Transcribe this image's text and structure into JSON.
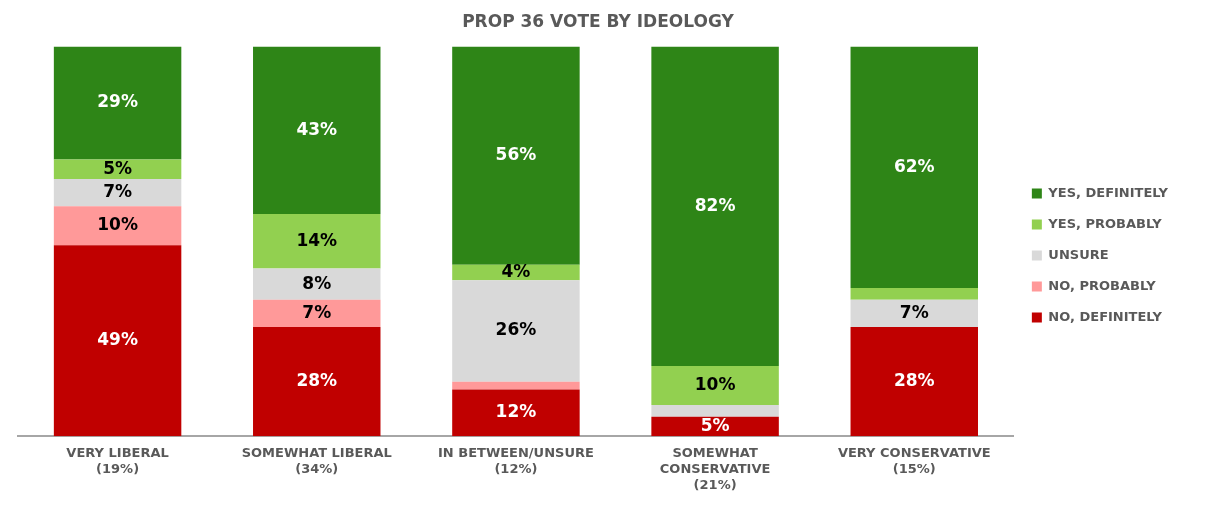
{
  "chart_data": {
    "type": "bar",
    "title": "PROP 36 VOTE BY IDEOLOGY",
    "stacked": true,
    "categories": [
      "VERY LIBERAL\n(19%)",
      "SOMEWHAT LIBERAL\n(34%)",
      "IN BETWEEN/UNSURE\n(12%)",
      "SOMEWHAT\nCONSERVATIVE\n(21%)",
      "VERY CONSERVATIVE\n(15%)"
    ],
    "series": [
      {
        "name": "NO, DEFINITELY",
        "color": "#c00000",
        "values": [
          49,
          28,
          12,
          5,
          28
        ],
        "value_labels": [
          "49%",
          "28%",
          "12%",
          "5%",
          "28%"
        ]
      },
      {
        "name": "NO, PROBABLY",
        "color": "#ff9999",
        "values": [
          10,
          7,
          2,
          0,
          0
        ],
        "value_labels": [
          "10%",
          "7%",
          null,
          null,
          null
        ]
      },
      {
        "name": "UNSURE",
        "color": "#d9d9d9",
        "values": [
          7,
          8,
          26,
          3,
          7
        ],
        "value_labels": [
          "7%",
          "8%",
          "26%",
          null,
          "7%"
        ]
      },
      {
        "name": "YES, PROBABLY",
        "color": "#92d050",
        "values": [
          5,
          14,
          4,
          10,
          3
        ],
        "value_labels": [
          "5%",
          "14%",
          "4%",
          "10%",
          null
        ]
      },
      {
        "name": "YES, DEFINITELY",
        "color": "#2e8517",
        "values": [
          29,
          43,
          56,
          82,
          62
        ],
        "value_labels": [
          "29%",
          "43%",
          "56%",
          "82%",
          "62%"
        ]
      }
    ],
    "ylim": [
      0,
      100
    ],
    "tick_labels": "x",
    "legend": "right"
  }
}
